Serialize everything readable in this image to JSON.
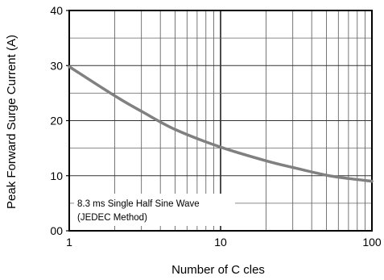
{
  "chart_data": {
    "type": "line",
    "title": "",
    "xlabel": "Number of C  cles",
    "ylabel": "Peak Forward Surge Current (A)",
    "x_scale": "log",
    "xlim": [
      1,
      100
    ],
    "ylim": [
      0,
      40
    ],
    "grid": true,
    "x_tick_labels": [
      "1",
      "10",
      "100"
    ],
    "y_tick_labels": [
      "00",
      "10",
      "20",
      "30",
      "40"
    ],
    "annotation": [
      "8.3 ms Single Half Sine Wave",
      "(JEDEC Method)"
    ],
    "line_color": "#808080",
    "series": [
      {
        "x": [
          1,
          2,
          3,
          5,
          10,
          20,
          30,
          50,
          70,
          100
        ],
        "y": [
          29.8,
          24.5,
          21.7,
          18.4,
          15.2,
          12.7,
          11.5,
          10.1,
          9.5,
          9.0
        ]
      }
    ]
  }
}
